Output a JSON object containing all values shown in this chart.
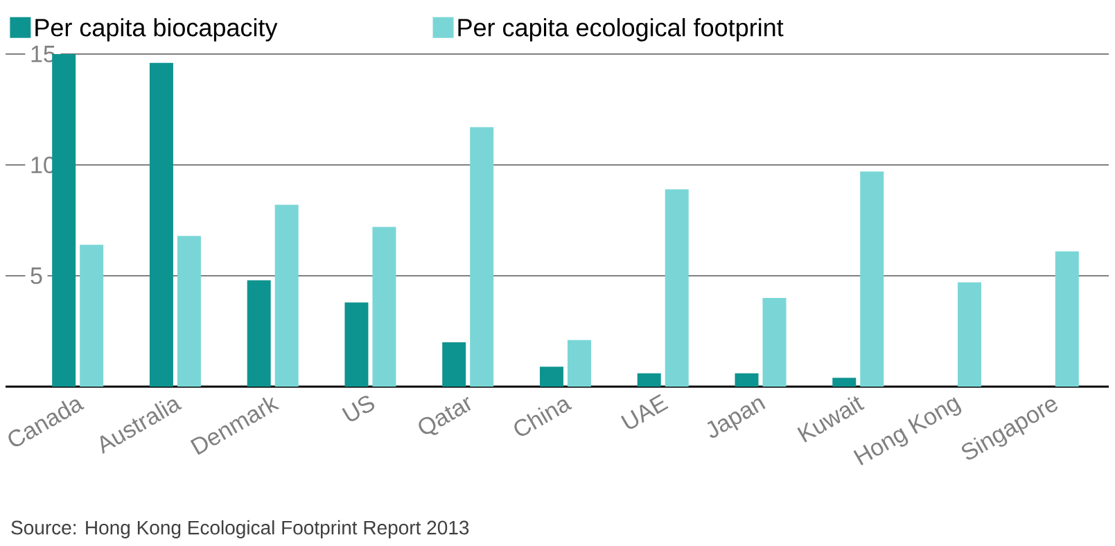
{
  "chart_data": {
    "type": "bar",
    "categories": [
      "Canada",
      "Australia",
      "Denmark",
      "US",
      "Qatar",
      "China",
      "UAE",
      "Japan",
      "Kuwait",
      "Hong Kong",
      "Singapore"
    ],
    "series": [
      {
        "name": "Per capita biocapacity",
        "color": "#0e9490",
        "values": [
          15.0,
          14.6,
          4.8,
          3.8,
          2.0,
          0.9,
          0.6,
          0.6,
          0.4,
          0,
          0
        ]
      },
      {
        "name": "Per capita ecological footprint",
        "color": "#7ad6d6",
        "values": [
          6.4,
          6.8,
          8.2,
          7.2,
          11.7,
          2.1,
          8.9,
          4.0,
          9.7,
          4.7,
          6.1
        ]
      }
    ],
    "ylim": [
      0,
      15
    ],
    "yticks": [
      5,
      10,
      15
    ],
    "grid": "y",
    "legend": "top left",
    "annotations": [
      "Source: Hong Kong Ecological Footprint Report 2013"
    ]
  }
}
